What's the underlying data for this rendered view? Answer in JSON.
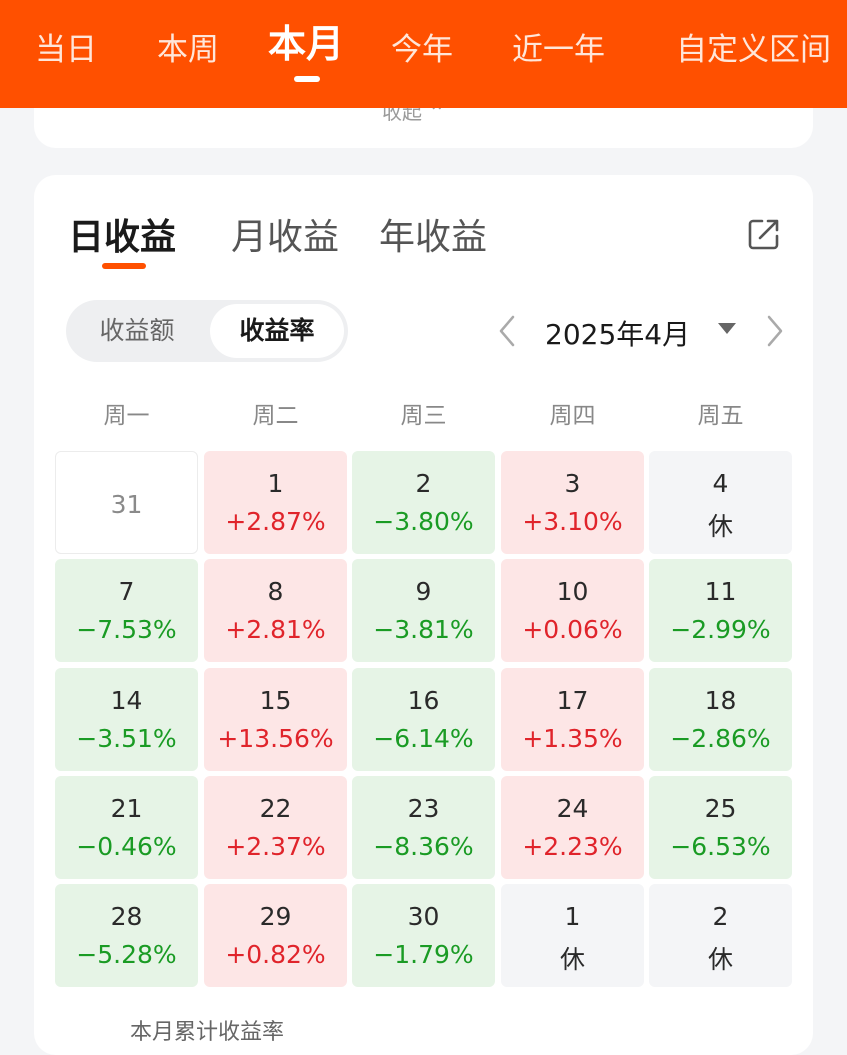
{
  "top_tabs": [
    "当日",
    "本周",
    "本月",
    "今年",
    "近一年",
    "自定义区间"
  ],
  "top_active_index": 2,
  "prev_card_text": "收起 ⌃",
  "sub_tabs": [
    "日收益",
    "月收益",
    "年收益"
  ],
  "sub_active_index": 0,
  "segment": {
    "left": "收益额",
    "right": "收益率",
    "active": "收益率"
  },
  "month_label": "2025年4月",
  "weekdays": [
    "周一",
    "周二",
    "周三",
    "周四",
    "周五"
  ],
  "calendar": [
    [
      {
        "day": "31",
        "value": "",
        "kind": "empty"
      },
      {
        "day": "1",
        "value": "+2.87%",
        "kind": "up"
      },
      {
        "day": "2",
        "value": "−3.80%",
        "kind": "down"
      },
      {
        "day": "3",
        "value": "+3.10%",
        "kind": "up"
      },
      {
        "day": "4",
        "value": "休",
        "kind": "rest"
      }
    ],
    [
      {
        "day": "7",
        "value": "−7.53%",
        "kind": "down"
      },
      {
        "day": "8",
        "value": "+2.81%",
        "kind": "up"
      },
      {
        "day": "9",
        "value": "−3.81%",
        "kind": "down"
      },
      {
        "day": "10",
        "value": "+0.06%",
        "kind": "up"
      },
      {
        "day": "11",
        "value": "−2.99%",
        "kind": "down"
      }
    ],
    [
      {
        "day": "14",
        "value": "−3.51%",
        "kind": "down"
      },
      {
        "day": "15",
        "value": "+13.56%",
        "kind": "up"
      },
      {
        "day": "16",
        "value": "−6.14%",
        "kind": "down"
      },
      {
        "day": "17",
        "value": "+1.35%",
        "kind": "up"
      },
      {
        "day": "18",
        "value": "−2.86%",
        "kind": "down"
      }
    ],
    [
      {
        "day": "21",
        "value": "−0.46%",
        "kind": "down"
      },
      {
        "day": "22",
        "value": "+2.37%",
        "kind": "up"
      },
      {
        "day": "23",
        "value": "−8.36%",
        "kind": "down"
      },
      {
        "day": "24",
        "value": "+2.23%",
        "kind": "up"
      },
      {
        "day": "25",
        "value": "−6.53%",
        "kind": "down"
      }
    ],
    [
      {
        "day": "28",
        "value": "−5.28%",
        "kind": "down"
      },
      {
        "day": "29",
        "value": "+0.82%",
        "kind": "up"
      },
      {
        "day": "30",
        "value": "−1.79%",
        "kind": "down"
      },
      {
        "day": "1",
        "value": "休",
        "kind": "rest"
      },
      {
        "day": "2",
        "value": "休",
        "kind": "rest"
      }
    ]
  ],
  "bottom_peek_text": "本月累计收益率",
  "colors": {
    "brand": "#ff5000",
    "up": "#e0242b",
    "down": "#1a9b24"
  }
}
